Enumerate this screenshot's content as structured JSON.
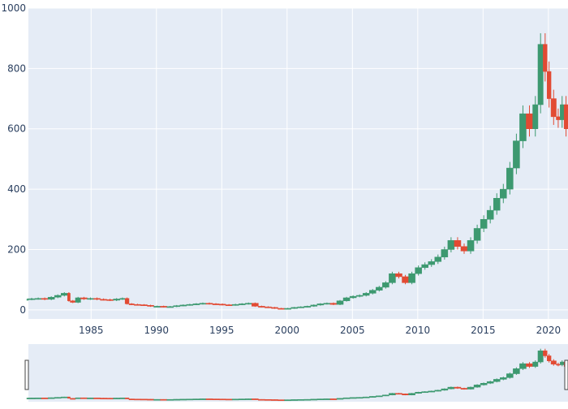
{
  "chart_data": {
    "type": "candlestick",
    "title": "",
    "xlabel": "",
    "ylabel": "",
    "xlim": [
      1980.2,
      2021.5
    ],
    "ylim": [
      -30,
      1000
    ],
    "x_ticks": [
      "1985",
      "1990",
      "1995",
      "2000",
      "2005",
      "2010",
      "2015",
      "2020"
    ],
    "x_tick_values": [
      1985,
      1990,
      1995,
      2000,
      2005,
      2010,
      2015,
      2020
    ],
    "y_ticks": [
      "0",
      "200",
      "400",
      "600",
      "800",
      "1000"
    ],
    "y_tick_values": [
      0,
      200,
      400,
      600,
      800,
      1000
    ],
    "grid": true,
    "legend": "none",
    "rangeslider": true,
    "colors": {
      "increasing": "#3D9970",
      "decreasing": "#E24A33",
      "plot_bg": "#E5ECF6",
      "grid": "#ffffff",
      "tick_text": "#2a3f5f"
    },
    "series": [
      {
        "x": [
          1980.2,
          1980.7,
          1981.2,
          1981.7,
          1982.2,
          1982.7,
          1983.2,
          1983.4,
          1983.8,
          1984.2,
          1984.7,
          1985.2,
          1985.7,
          1986.2,
          1986.7,
          1987.2,
          1987.6,
          1987.9,
          1988.3,
          1988.8,
          1989.3,
          1989.8,
          1990.3,
          1990.8,
          1991.3,
          1991.8,
          1992.3,
          1992.8,
          1993.3,
          1993.8,
          1994.3,
          1994.8,
          1995.3,
          1995.8,
          1996.3,
          1996.8,
          1997.3,
          1997.8,
          1998.3,
          1998.8,
          1999.3,
          1999.8,
          2000.3,
          2000.8,
          2001.3,
          2001.8,
          2002.3,
          2002.8,
          2003.3,
          2003.8,
          2004.3,
          2004.8,
          2005.3,
          2005.8,
          2006.3,
          2006.8,
          2007.3,
          2007.8,
          2008.3,
          2008.8,
          2009.3,
          2009.8,
          2010.3,
          2010.8,
          2011.3,
          2011.8,
          2012.3,
          2012.8,
          2013.3,
          2013.8,
          2014.3,
          2014.8,
          2015.3,
          2015.8,
          2016.3,
          2016.8,
          2017.3,
          2017.8,
          2018.3,
          2018.8,
          2019.2,
          2019.6,
          2019.9,
          2020.2,
          2020.6,
          2020.9,
          2021.2,
          2021.5
        ],
        "y": [
          35,
          37,
          38,
          35,
          42,
          48,
          55,
          30,
          25,
          40,
          36,
          38,
          35,
          34,
          32,
          36,
          38,
          20,
          18,
          17,
          15,
          12,
          12,
          10,
          11,
          14,
          16,
          18,
          20,
          22,
          20,
          19,
          17,
          16,
          18,
          20,
          22,
          12,
          10,
          8,
          5,
          4,
          5,
          8,
          10,
          12,
          16,
          20,
          22,
          18,
          30,
          40,
          45,
          48,
          55,
          65,
          75,
          90,
          120,
          110,
          90,
          120,
          140,
          150,
          160,
          175,
          200,
          230,
          210,
          195,
          230,
          270,
          300,
          330,
          370,
          400,
          470,
          560,
          650,
          600,
          680,
          880,
          790,
          700,
          640,
          630,
          680,
          600
        ]
      }
    ]
  }
}
